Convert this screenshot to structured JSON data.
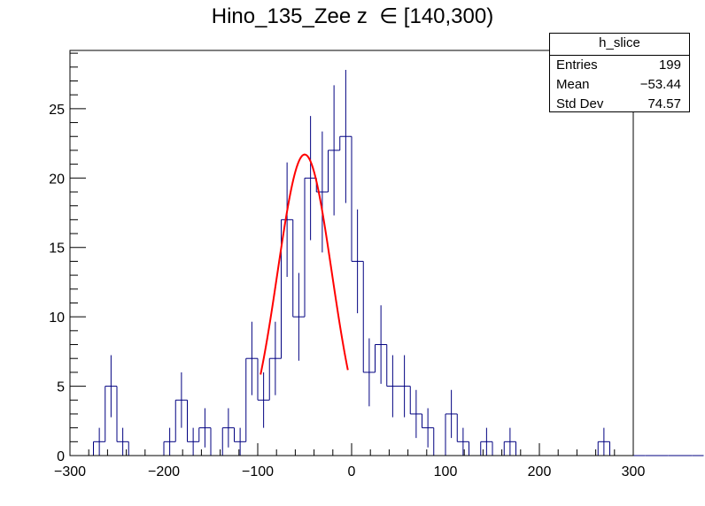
{
  "title": "Hino_135_Zee z  ∈ [140,300)",
  "stats": {
    "name": "h_slice",
    "rows": [
      {
        "label": "Entries",
        "value": "199"
      },
      {
        "label": "Mean",
        "value": "−53.44"
      },
      {
        "label": "Std Dev",
        "value": "74.57"
      }
    ]
  },
  "colors": {
    "hist": "#000080",
    "fit": "#ff0000",
    "frame": "#000000"
  },
  "chart_data": {
    "type": "histogram",
    "title": "Hino_135_Zee z  ∈ [140,300)",
    "xlabel": "",
    "ylabel": "",
    "xlim": [
      -300,
      300
    ],
    "ylim": [
      0,
      29.2
    ],
    "bin_width": 12.5,
    "bin_low": -300,
    "counts": [
      0,
      0,
      1,
      5,
      1,
      0,
      0,
      0,
      1,
      4,
      1,
      2,
      0,
      2,
      1,
      7,
      4,
      7,
      17,
      10,
      20,
      19,
      22,
      23,
      14,
      6,
      8,
      5,
      5,
      3,
      2,
      0,
      3,
      1,
      0,
      1,
      0,
      1,
      0,
      0,
      0,
      0,
      0,
      0,
      0,
      1,
      0,
      0,
      0,
      0,
      0,
      0,
      0,
      0
    ],
    "x_ticks": [
      -300,
      -200,
      -100,
      0,
      100,
      200,
      300
    ],
    "x_tick_labels": [
      "−300",
      "−200",
      "−100",
      "0",
      "100",
      "200",
      "300"
    ],
    "y_ticks": [
      0,
      5,
      10,
      15,
      20,
      25
    ],
    "y_tick_labels": [
      "0",
      "5",
      "10",
      "15",
      "20",
      "25"
    ],
    "fit": {
      "type": "gaus",
      "constant": 21.7,
      "mean": -50.0,
      "sigma": 29.0,
      "range": [
        -97,
        -4
      ]
    },
    "grid": false,
    "legend": "top-right"
  }
}
